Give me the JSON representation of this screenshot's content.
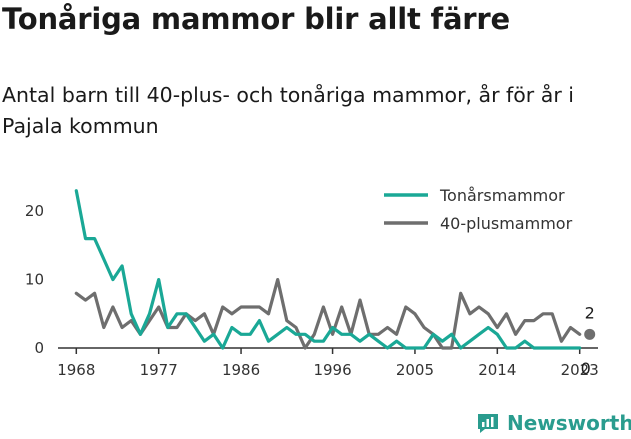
{
  "title": "Tonåriga mammor blir allt färre",
  "subtitle": "Antal barn till 40-plus- och tonåriga mammor, år för år i Pajala kommun",
  "logo_text": "Newsworthy",
  "colors": {
    "teen": "#1aa896",
    "forty": "#6e6e6e",
    "axis": "#333333",
    "grid": "#dddddd"
  },
  "chart_data": {
    "type": "line",
    "title": "Tonåriga mammor blir allt färre",
    "subtitle": "Antal barn till 40-plus- och tonåriga mammor, år för år i Pajala kommun",
    "xlabel": "",
    "ylabel": "",
    "xlim": [
      1966,
      2025
    ],
    "ylim": [
      0,
      25
    ],
    "x_ticks": [
      1968,
      1977,
      1986,
      1996,
      2005,
      2014,
      2023
    ],
    "y_ticks": [
      0,
      10,
      20
    ],
    "grid": false,
    "legend_position": "top-right",
    "x": [
      1968,
      1969,
      1970,
      1971,
      1972,
      1973,
      1974,
      1975,
      1976,
      1977,
      1978,
      1979,
      1980,
      1981,
      1982,
      1983,
      1984,
      1985,
      1986,
      1987,
      1988,
      1989,
      1990,
      1991,
      1992,
      1993,
      1994,
      1995,
      1996,
      1997,
      1998,
      1999,
      2000,
      2001,
      2002,
      2003,
      2004,
      2005,
      2006,
      2007,
      2008,
      2009,
      2010,
      2011,
      2012,
      2013,
      2014,
      2015,
      2016,
      2017,
      2018,
      2019,
      2020,
      2021,
      2022,
      2023
    ],
    "series": [
      {
        "name": "Tonårsmammor",
        "values": [
          23,
          16,
          16,
          13,
          10,
          12,
          5,
          2,
          5,
          10,
          3,
          5,
          5,
          3,
          1,
          2,
          0,
          3,
          2,
          2,
          4,
          1,
          2,
          3,
          2,
          2,
          1,
          1,
          3,
          2,
          2,
          1,
          2,
          1,
          0,
          1,
          0,
          0,
          0,
          2,
          1,
          2,
          0,
          1,
          2,
          3,
          2,
          0,
          0,
          1,
          0,
          0,
          0,
          0,
          0,
          0
        ],
        "end_label": "0"
      },
      {
        "name": "40-plusmammor",
        "values": [
          8,
          7,
          8,
          3,
          6,
          3,
          4,
          2,
          4,
          6,
          3,
          3,
          5,
          4,
          5,
          2,
          6,
          5,
          6,
          6,
          6,
          5,
          10,
          4,
          3,
          0,
          2,
          6,
          2,
          6,
          2,
          7,
          2,
          2,
          3,
          2,
          6,
          5,
          3,
          2,
          0,
          0,
          8,
          5,
          6,
          5,
          3,
          5,
          2,
          4,
          4,
          5,
          5,
          1,
          3,
          2
        ],
        "end_label": "2"
      }
    ]
  }
}
